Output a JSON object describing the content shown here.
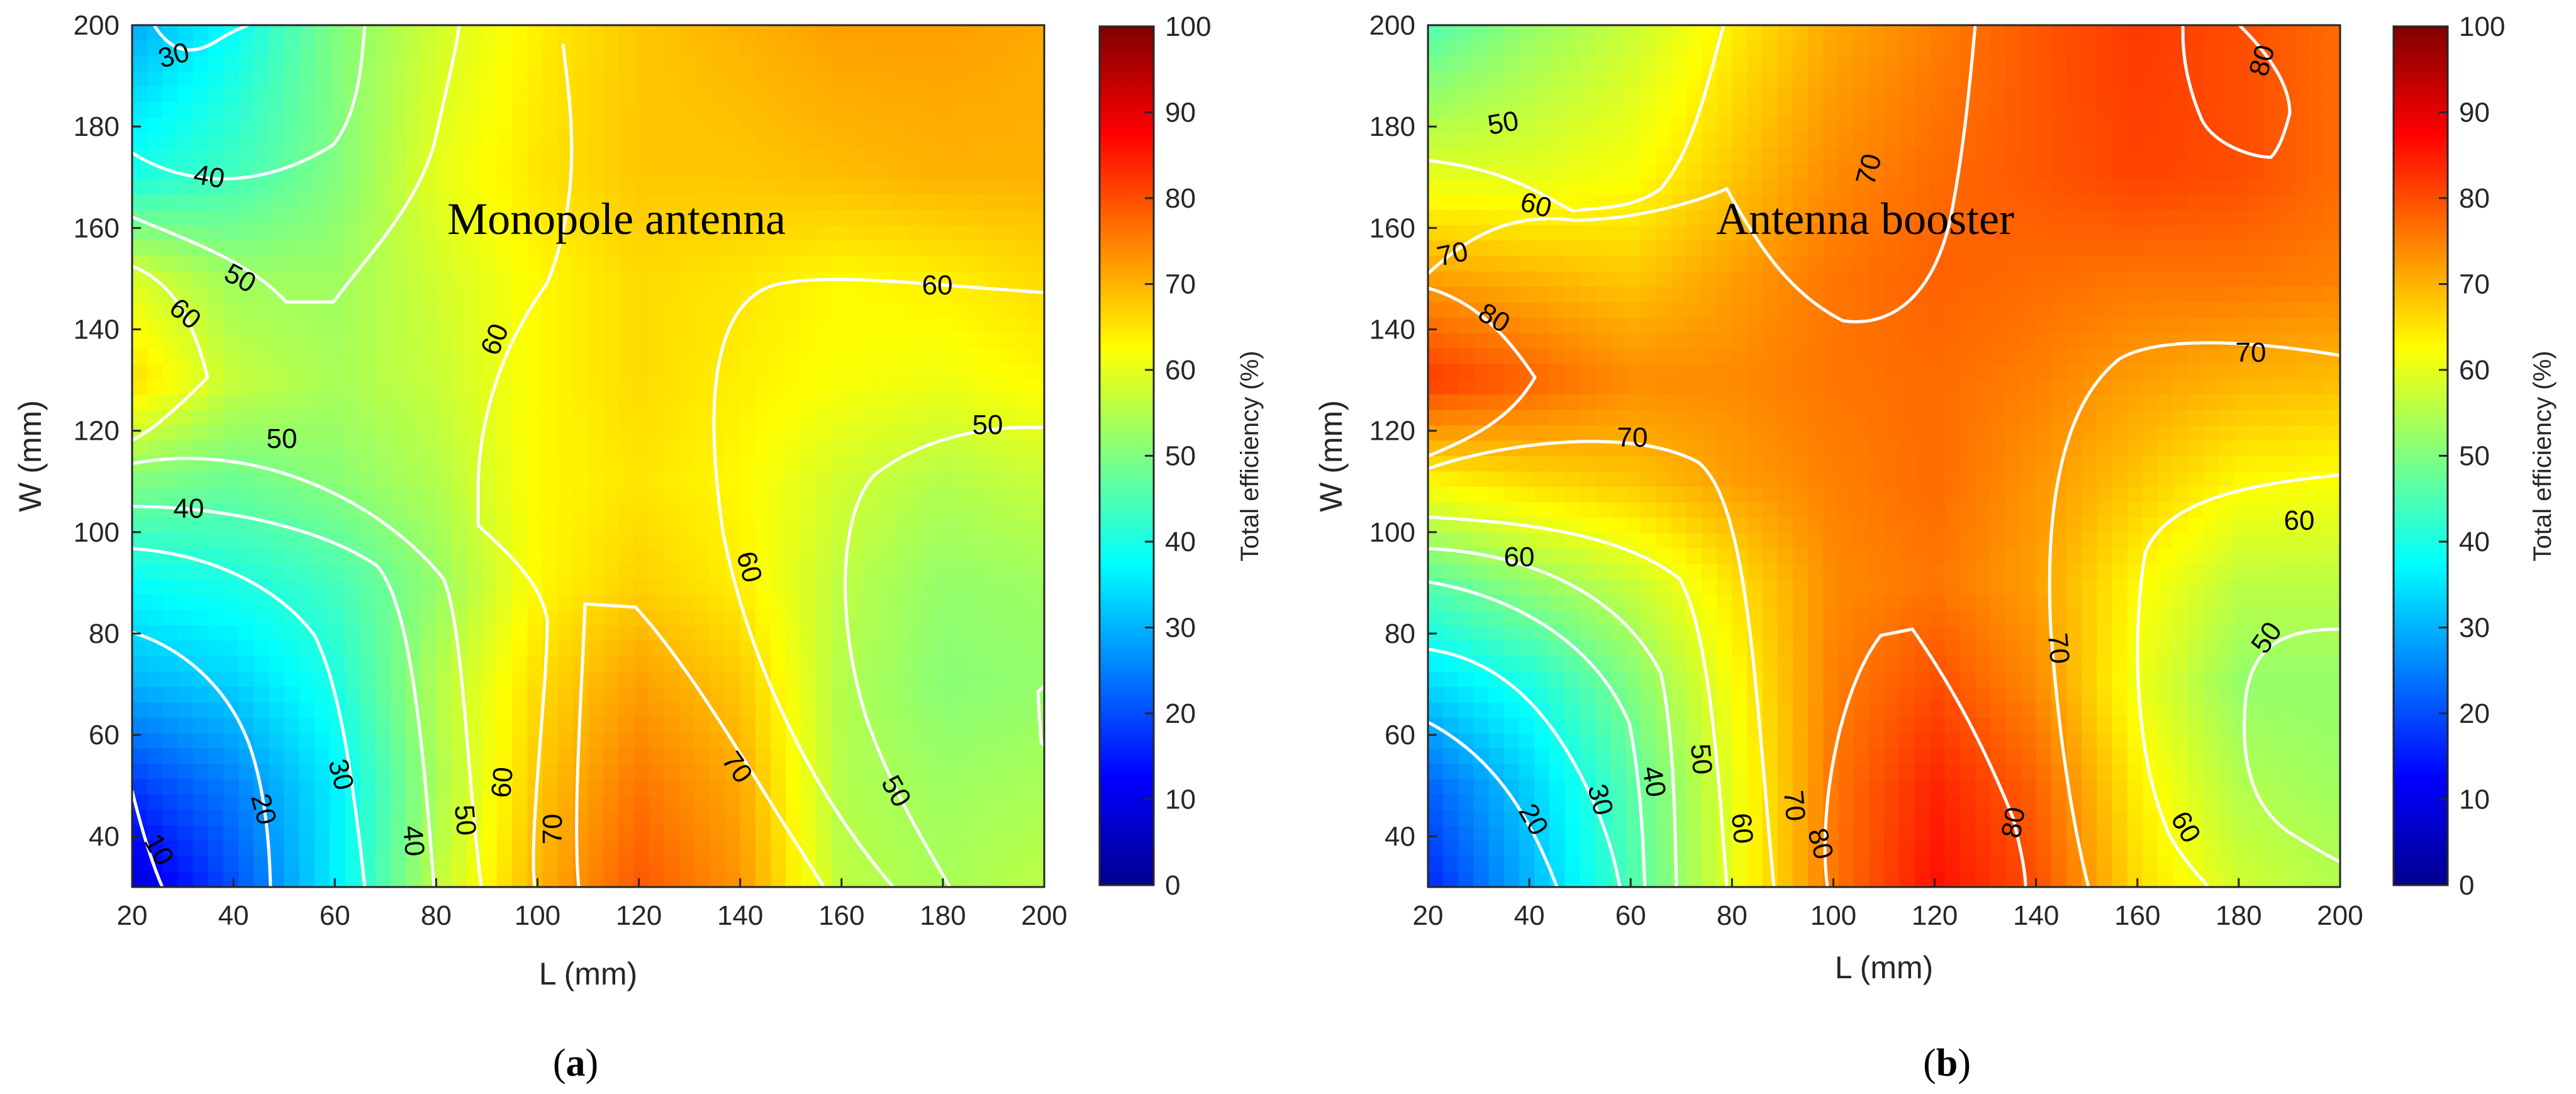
{
  "colors": {
    "contour_line": "#ffffff",
    "colormap": [
      "#00008f",
      "#0000ff",
      "#0080ff",
      "#00ffff",
      "#80ff80",
      "#ffff00",
      "#ff8000",
      "#ff0000",
      "#800000"
    ]
  },
  "chart_data": [
    {
      "type": "heatmap",
      "title": "Monopole antenna",
      "subfigure_label": "(a)",
      "subfigure_letter": "a",
      "xlabel": "L (mm)",
      "ylabel": "W (mm)",
      "colorbar_label": "Total efficiency (%)",
      "xlim": [
        20,
        200
      ],
      "ylim": [
        30,
        200
      ],
      "clim": [
        0,
        100
      ],
      "x_ticks": [
        20,
        40,
        60,
        80,
        100,
        120,
        140,
        160,
        180,
        200
      ],
      "y_ticks": [
        40,
        60,
        80,
        100,
        120,
        140,
        160,
        180,
        200
      ],
      "colorbar_ticks": [
        0,
        10,
        20,
        30,
        40,
        50,
        60,
        70,
        80,
        90,
        100
      ],
      "x": [
        20,
        40,
        60,
        80,
        100,
        120,
        140,
        160,
        180,
        200
      ],
      "y": [
        30,
        50,
        70,
        90,
        110,
        130,
        150,
        170,
        200
      ],
      "z": [
        [
          8,
          20,
          36,
          56,
          70,
          79,
          73,
          56,
          54,
          56
        ],
        [
          18,
          25,
          36,
          54,
          68,
          76,
          71,
          55,
          53,
          54
        ],
        [
          30,
          33,
          40,
          55,
          66,
          72,
          68,
          55,
          51,
          52
        ],
        [
          38,
          40,
          44,
          52,
          63,
          67,
          64,
          56,
          52,
          53
        ],
        [
          50,
          48,
          51,
          55,
          63,
          65,
          63,
          58,
          55,
          57
        ],
        [
          66,
          57,
          54,
          57,
          63,
          66,
          64,
          62,
          61,
          63
        ],
        [
          59,
          53,
          53,
          58,
          63,
          66,
          65,
          63,
          64,
          66
        ],
        [
          40,
          44,
          50,
          60,
          65,
          68,
          68,
          69,
          70,
          70
        ],
        [
          29,
          38,
          50,
          58,
          64,
          68,
          70,
          72,
          72,
          71
        ]
      ],
      "contour_labels": [
        "10",
        "20",
        "30",
        "40",
        "50",
        "60",
        "70",
        "50",
        "60",
        "70",
        "60",
        "50",
        "60",
        "60",
        "50",
        "40",
        "50",
        "40",
        "30"
      ]
    },
    {
      "type": "heatmap",
      "title": "Antenna booster",
      "subfigure_label": "(b)",
      "subfigure_letter": "b",
      "xlabel": "L (mm)",
      "ylabel": "W (mm)",
      "colorbar_label": "Total efficiency (%)",
      "xlim": [
        20,
        200
      ],
      "ylim": [
        30,
        200
      ],
      "clim": [
        0,
        100
      ],
      "x_ticks": [
        20,
        40,
        60,
        80,
        100,
        120,
        140,
        160,
        180,
        200
      ],
      "y_ticks": [
        40,
        60,
        80,
        100,
        120,
        140,
        160,
        180,
        200
      ],
      "colorbar_ticks": [
        0,
        10,
        20,
        30,
        40,
        50,
        60,
        70,
        80,
        90,
        100
      ],
      "x": [
        20,
        40,
        60,
        80,
        100,
        120,
        140,
        160,
        180,
        200
      ],
      "y": [
        30,
        50,
        70,
        90,
        110,
        130,
        150,
        170,
        200
      ],
      "z": [
        [
          16,
          30,
          45,
          60,
          76,
          86,
          80,
          66,
          58,
          55
        ],
        [
          22,
          33,
          46,
          60,
          76,
          84,
          78,
          64,
          55,
          53
        ],
        [
          34,
          40,
          50,
          62,
          75,
          80,
          74,
          61,
          52,
          52
        ],
        [
          46,
          52,
          57,
          65,
          74,
          76,
          72,
          63,
          56,
          56
        ],
        [
          63,
          66,
          68,
          72,
          75,
          77,
          73,
          68,
          63,
          62
        ],
        [
          82,
          78,
          74,
          74,
          76,
          77,
          75,
          72,
          70,
          69
        ],
        [
          72,
          70,
          68,
          72,
          76,
          78,
          77,
          76,
          76,
          75
        ],
        [
          60,
          60,
          62,
          68,
          74,
          77,
          79,
          81,
          80,
          77
        ],
        [
          45,
          52,
          57,
          64,
          71,
          75,
          79,
          82,
          80,
          77
        ]
      ],
      "contour_labels": [
        "20",
        "30",
        "40",
        "50",
        "60",
        "70",
        "80",
        "80",
        "70",
        "60",
        "50",
        "60",
        "70",
        "70",
        "60",
        "80",
        "70",
        "60",
        "50",
        "80"
      ]
    }
  ]
}
